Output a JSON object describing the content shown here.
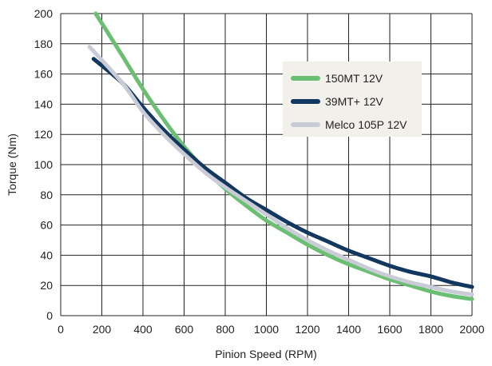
{
  "chart_data": {
    "type": "line",
    "title": "",
    "xlabel": "Pinion Speed (RPM)",
    "ylabel": "Torque (Nm)",
    "xlim": [
      0,
      2000
    ],
    "ylim": [
      0,
      200
    ],
    "xticks": [
      0,
      200,
      400,
      600,
      800,
      1000,
      1200,
      1400,
      1600,
      1800,
      2000
    ],
    "yticks": [
      0,
      20,
      40,
      60,
      80,
      100,
      120,
      140,
      160,
      180,
      200
    ],
    "grid": true,
    "legend_position": "top-right",
    "series": [
      {
        "name": "150MT 12V",
        "color": "#6bbf73",
        "x": [
          170,
          300,
          400,
          500,
          600,
          700,
          800,
          900,
          1000,
          1100,
          1200,
          1300,
          1400,
          1500,
          1600,
          1700,
          1800,
          1900,
          2000
        ],
        "y": [
          200,
          172,
          150,
          130,
          112,
          97,
          84,
          73,
          63,
          55,
          47,
          40,
          34,
          29,
          24,
          20,
          16,
          13,
          11
        ]
      },
      {
        "name": "39MT+ 12V",
        "color": "#13385f",
        "x": [
          160,
          300,
          400,
          500,
          600,
          700,
          800,
          900,
          1000,
          1100,
          1200,
          1300,
          1400,
          1500,
          1600,
          1700,
          1800,
          1900,
          2000
        ],
        "y": [
          170,
          154,
          138,
          123,
          110,
          98,
          88,
          78,
          70,
          62,
          55,
          49,
          43,
          38,
          33,
          29,
          26,
          22,
          19
        ]
      },
      {
        "name": "Melco 105P 12V",
        "color": "#c9ccd6",
        "x": [
          140,
          300,
          400,
          500,
          600,
          700,
          800,
          900,
          1000,
          1100,
          1200,
          1300,
          1400,
          1500,
          1600,
          1700,
          1800,
          1900,
          2000
        ],
        "y": [
          178,
          154,
          135,
          120,
          107,
          95,
          85,
          76,
          67,
          58,
          50,
          43,
          37,
          31,
          26,
          22,
          19,
          16,
          14
        ]
      }
    ]
  }
}
